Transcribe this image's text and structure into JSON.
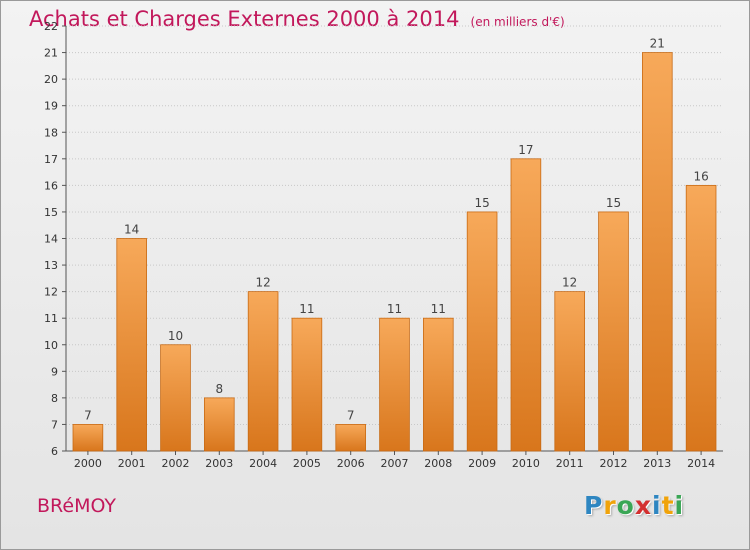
{
  "title": "Achats et Charges Externes 2000 à 2014",
  "unit_note": "(en milliers d'€)",
  "town": "BRéMOY",
  "logo": {
    "letters": [
      "P",
      "r",
      "o",
      "x",
      "i",
      "t",
      "i"
    ],
    "colors": [
      "#2e86c1",
      "#f0a30a",
      "#3aa655",
      "#d32f2f",
      "#2e86c1",
      "#f0a30a",
      "#3aa655"
    ]
  },
  "colors": {
    "bar_top": "#f7a95a",
    "bar_bottom": "#d8761c",
    "bar_edge": "#c86a14",
    "axis": "#555555",
    "title": "#c2185b",
    "grid": "#c8c8c8"
  },
  "chart_data": {
    "type": "bar",
    "categories": [
      "2000",
      "2001",
      "2002",
      "2003",
      "2004",
      "2005",
      "2006",
      "2007",
      "2008",
      "2009",
      "2010",
      "2011",
      "2012",
      "2013",
      "2014"
    ],
    "values": [
      7,
      14,
      10,
      8,
      12,
      11,
      7,
      11,
      11,
      15,
      17,
      12,
      15,
      21,
      16
    ],
    "data_labels": [
      "7",
      "14",
      "10",
      "8",
      "12",
      "11",
      "7",
      "11",
      "11",
      "15",
      "17",
      "12",
      "15",
      "21",
      "16"
    ],
    "ylim": [
      6,
      22
    ],
    "y_ticks": [
      "6",
      "7",
      "8",
      "9",
      "10",
      "11",
      "12",
      "13",
      "14",
      "15",
      "16",
      "17",
      "18",
      "19",
      "20",
      "21",
      "22"
    ],
    "grid": true,
    "legend": "none",
    "title": "Achats et Charges Externes 2000 à 2014",
    "xlabel": "",
    "ylabel": ""
  }
}
